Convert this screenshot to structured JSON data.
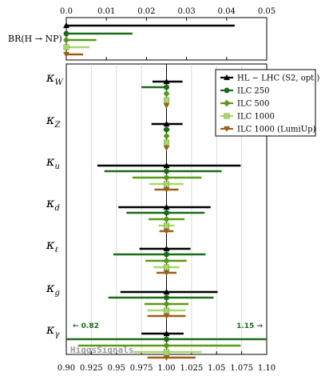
{
  "chart_data": [
    {
      "type": "bar",
      "panel": "top",
      "row_label": "BR(H → NP)",
      "xlim": [
        0,
        0.05
      ],
      "x_ticks": [
        "0.0",
        "0.01",
        "0.02",
        "0.03",
        "0.04",
        "0.05"
      ],
      "series": [
        {
          "name": "HL − LHC (S2, opt.)",
          "value": 0.042
        },
        {
          "name": "ILC 250",
          "value": 0.0165
        },
        {
          "name": "ILC 500",
          "value": 0.0075
        },
        {
          "name": "ILC 1000",
          "value": 0.0058
        },
        {
          "name": "ILC 1000 (LumiUp)",
          "value": 0.0042
        }
      ]
    },
    {
      "type": "scatter",
      "panel": "main",
      "xlim": [
        0.9,
        1.1
      ],
      "x_ticks": [
        "0.90",
        "0.925",
        "0.95",
        "0.975",
        "1.00",
        "1.025",
        "1.05",
        "1.075",
        "1.10"
      ],
      "grid": true,
      "legend_position": "top-right",
      "series_names": [
        "HL − LHC (S2, opt.)",
        "ILC 250",
        "ILC 500",
        "ILC 1000",
        "ILC 1000 (LumiUp)"
      ],
      "series_colors": [
        "#000000",
        "#1a6b1a",
        "#5a9a14",
        "#a8d86a",
        "#9b5f1a"
      ],
      "markers": [
        "triangle-up",
        "circle",
        "diamond",
        "square",
        "triangle-down"
      ],
      "parameters": [
        {
          "symbol": "κ",
          "sub": "W",
          "lo": [
            0.986,
            0.975,
            0.998,
            0.9985,
            0.999
          ],
          "hi": [
            1.016,
            1.0,
            1.002,
            1.0015,
            1.001
          ]
        },
        {
          "symbol": "κ",
          "sub": "Z",
          "lo": [
            0.985,
            0.997,
            0.998,
            0.9985,
            0.999
          ],
          "hi": [
            1.016,
            1.003,
            1.002,
            1.0015,
            1.001
          ]
        },
        {
          "symbol": "κ",
          "sub": "u",
          "lo": [
            0.931,
            0.938,
            0.966,
            0.983,
            0.988
          ],
          "hi": [
            1.074,
            1.055,
            1.035,
            1.017,
            1.012
          ]
        },
        {
          "symbol": "κ",
          "sub": "d",
          "lo": [
            0.952,
            0.96,
            0.982,
            0.992,
            0.993
          ],
          "hi": [
            1.044,
            1.038,
            1.018,
            1.008,
            1.007
          ]
        },
        {
          "symbol": "κ",
          "sub": "ℓ",
          "lo": [
            0.973,
            0.947,
            0.979,
            0.987,
            0.99
          ],
          "hi": [
            1.024,
            1.039,
            1.02,
            1.013,
            1.01
          ]
        },
        {
          "symbol": "κ",
          "sub": "g",
          "lo": [
            0.954,
            0.942,
            0.978,
            0.981,
            0.981
          ],
          "hi": [
            1.051,
            1.047,
            1.022,
            1.019,
            1.019
          ]
        },
        {
          "symbol": "κ",
          "sub": "γ",
          "lo": [
            0.975,
            0.82,
            0.912,
            0.967,
            0.981
          ],
          "hi": [
            1.017,
            1.15,
            1.074,
            1.035,
            1.029
          ]
        }
      ],
      "annotations": {
        "left": "← 0.82",
        "right": "1.15 →"
      },
      "watermark": "HiggsSignals"
    }
  ]
}
